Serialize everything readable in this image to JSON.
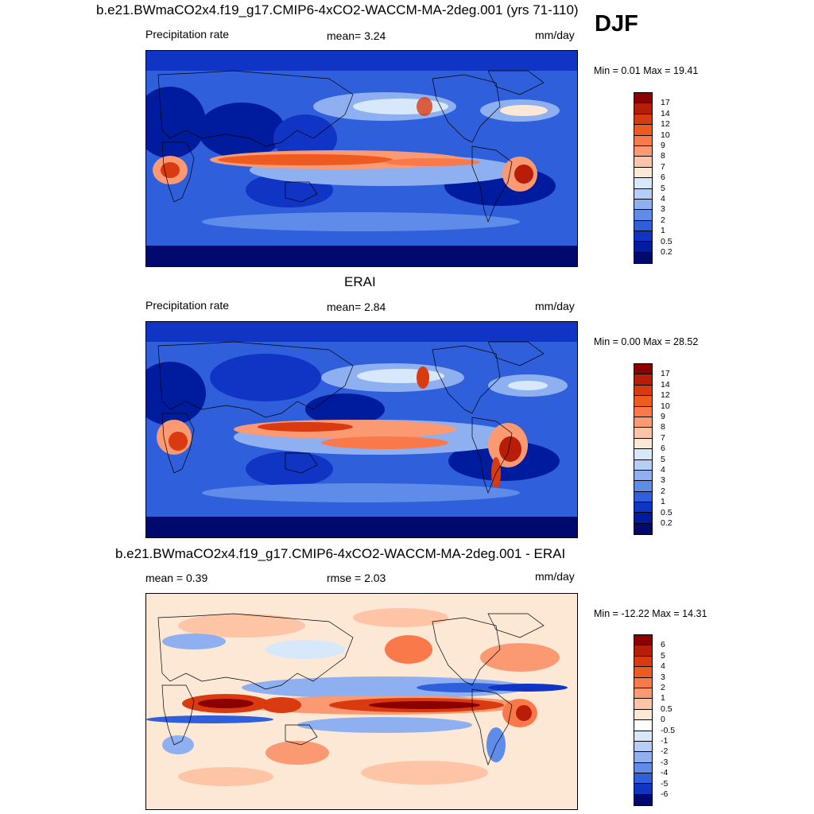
{
  "season": "DJF",
  "panels": [
    {
      "title": "b.e21.BWmaCO2x4.f19_g17.CMIP6-4xCO2-WACCM-MA-2deg.001 (yrs 71-110)",
      "left_label": "Precipitation rate",
      "center_label": "mean=   3.24",
      "units": "mm/day",
      "minmax": "Min =   0.01 Max =  19.41",
      "cbar_labels": [
        "17",
        "14",
        "12",
        "10",
        "9",
        "8",
        "7",
        "6",
        "5",
        "4",
        "3",
        "2",
        "1",
        "0.5",
        "0.2"
      ]
    },
    {
      "title": "ERAI",
      "left_label": "Precipitation rate",
      "center_label": "mean=   2.84",
      "units": "mm/day",
      "minmax": "Min =   0.00 Max =  28.52",
      "cbar_labels": [
        "17",
        "14",
        "12",
        "10",
        "9",
        "8",
        "7",
        "6",
        "5",
        "4",
        "3",
        "2",
        "1",
        "0.5",
        "0.2"
      ]
    },
    {
      "title": "b.e21.BWmaCO2x4.f19_g17.CMIP6-4xCO2-WACCM-MA-2deg.001 - ERAI",
      "left_label": "mean =   0.39",
      "center_label": "rmse =   2.03",
      "units": "mm/day",
      "minmax": "Min = -12.22 Max =  14.31",
      "cbar_labels": [
        "6",
        "5",
        "4",
        "3",
        "2",
        "1",
        "0.5",
        "0",
        "-0.5",
        "-1",
        "-2",
        "-3",
        "-4",
        "-5",
        "-6"
      ]
    }
  ],
  "colors": {
    "abs_scale": [
      "#8b0000",
      "#b81d0a",
      "#d93a10",
      "#ef5a20",
      "#f9794a",
      "#fb9a72",
      "#fdc4a6",
      "#fde8d6",
      "#d7e8fb",
      "#b6cdf6",
      "#8fb0f0",
      "#5f8ce8",
      "#2f5fdb",
      "#1035c4",
      "#001c9e",
      "#000a6e"
    ],
    "diff_scale": [
      "#8b0000",
      "#b81d0a",
      "#d93a10",
      "#ef5a20",
      "#f9794a",
      "#fb9a72",
      "#fdc4a6",
      "#fde8d6",
      "#ffffff",
      "#d7e8fb",
      "#b6cdf6",
      "#8fb0f0",
      "#5f8ce8",
      "#2f5fdb",
      "#1035c4",
      "#000a6e"
    ]
  }
}
